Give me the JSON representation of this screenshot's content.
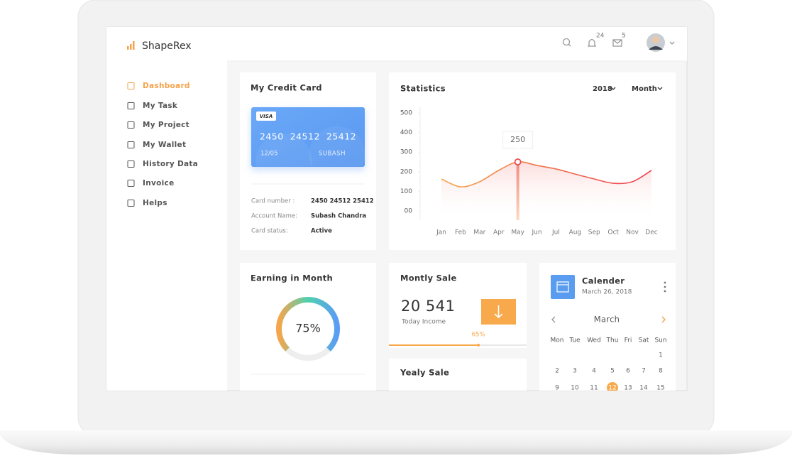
{
  "sidebar": {
    "brand": "ShapeRex",
    "menu": [
      "Dashboard",
      "My Task",
      "My Project",
      "My Wallet",
      "History Data",
      "Invoice",
      "Helps"
    ]
  },
  "header": {
    "notifications": 24,
    "messages": 5
  },
  "credit_card": {
    "title": "My Credit Card",
    "brand": "VISA",
    "number": "2450  24512  25412",
    "expiry": "12/05",
    "holder": "SUBASH",
    "details": [
      {
        "label": "Card number :",
        "value": "2450 24512 25412"
      },
      {
        "label": "Account Name:",
        "value": "Subash Chandra"
      },
      {
        "label": "Card status:",
        "value": "Active"
      }
    ]
  },
  "chart_data": {
    "type": "line",
    "title": "Statistics",
    "year_filter": "2018",
    "period_filter": "Month",
    "categories": [
      "Jan",
      "Feb",
      "Mar",
      "Apr",
      "May",
      "Jun",
      "Jul",
      "Aug",
      "Sep",
      "Oct",
      "Nov",
      "Dec"
    ],
    "values": [
      163,
      123,
      149,
      207,
      250,
      232,
      214,
      188,
      163,
      141,
      149,
      207
    ],
    "ylim": [
      0,
      500
    ],
    "yticks": [
      {
        "value": 0,
        "label": "00"
      },
      100,
      200,
      300,
      400,
      500
    ],
    "color": "#ee4a4a",
    "highlight": "May"
  },
  "earning": {
    "title": "Earning in Month",
    "value": 75,
    "label": "75%"
  },
  "monthly_sale": {
    "title": "Montly Sale",
    "amount": "20 541",
    "caption": "Today Income",
    "progress": 65,
    "progress_label": "65%"
  },
  "yearly_sale": {
    "title": "Yealy Sale"
  },
  "calendar": {
    "title": "Calender",
    "date": "March 26, 2018",
    "month": "March",
    "weekdays": [
      "Mon",
      "Tue",
      "Wed",
      "Thu",
      "Fri",
      "Sat",
      "Sun"
    ],
    "weeks": [
      [
        null,
        null,
        null,
        null,
        null,
        null,
        1
      ],
      [
        2,
        3,
        4,
        5,
        6,
        7,
        8
      ],
      [
        9,
        10,
        11,
        12,
        13,
        14,
        15
      ]
    ],
    "selected_day": 12
  }
}
